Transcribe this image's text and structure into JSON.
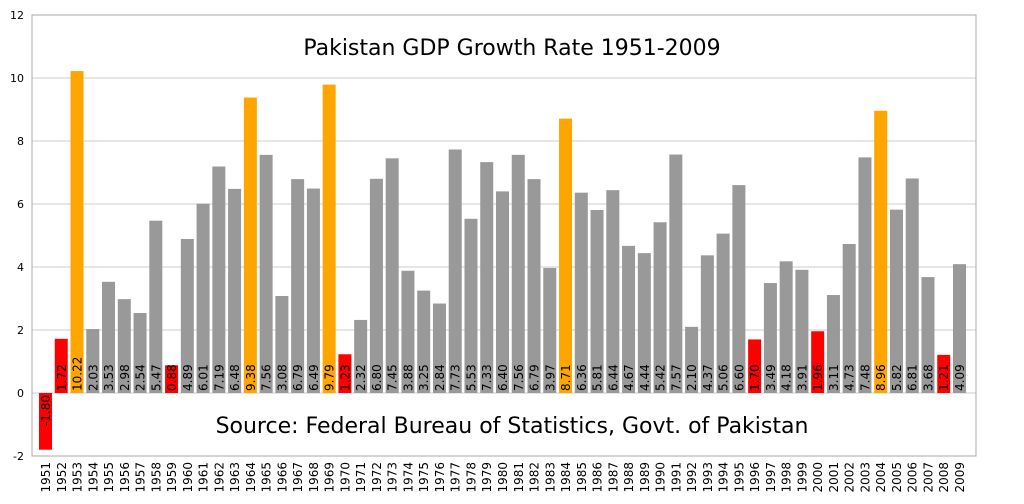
{
  "chart_data": {
    "type": "bar",
    "title": "Pakistan GDP Growth Rate 1951-2009",
    "annotation": "Source: Federal Bureau of Statistics, Govt. of Pakistan",
    "xlabel": "",
    "ylabel": "",
    "ylim": [
      -2,
      12
    ],
    "yticks": [
      -2,
      0,
      2,
      4,
      6,
      8,
      10,
      12
    ],
    "grid": true,
    "categories": [
      "1951",
      "1952",
      "1953",
      "1954",
      "1955",
      "1956",
      "1957",
      "1958",
      "1959",
      "1960",
      "1961",
      "1962",
      "1963",
      "1964",
      "1965",
      "1966",
      "1967",
      "1968",
      "1969",
      "1970",
      "1971",
      "1972",
      "1973",
      "1974",
      "1975",
      "1976",
      "1977",
      "1978",
      "1979",
      "1980",
      "1981",
      "1982",
      "1983",
      "1984",
      "1985",
      "1986",
      "1987",
      "1988",
      "1989",
      "1990",
      "1991",
      "1992",
      "1993",
      "1994",
      "1995",
      "1996",
      "1997",
      "1998",
      "1999",
      "2000",
      "2001",
      "2002",
      "2003",
      "2004",
      "2005",
      "2006",
      "2007",
      "2008",
      "2009"
    ],
    "values": [
      -1.8,
      1.72,
      10.22,
      2.03,
      3.53,
      2.98,
      2.54,
      5.47,
      0.88,
      4.89,
      6.01,
      7.19,
      6.48,
      9.38,
      7.56,
      3.08,
      6.79,
      6.49,
      9.79,
      1.23,
      2.32,
      6.8,
      7.45,
      3.88,
      3.25,
      2.84,
      7.73,
      5.53,
      7.33,
      6.4,
      7.56,
      6.79,
      3.97,
      8.71,
      6.36,
      5.81,
      6.44,
      4.67,
      4.44,
      5.42,
      7.57,
      2.1,
      4.37,
      5.06,
      6.6,
      1.7,
      3.49,
      4.18,
      3.91,
      1.96,
      3.11,
      4.73,
      7.48,
      8.96,
      5.82,
      6.81,
      3.68,
      1.21,
      4.09
    ],
    "labels": [
      "-1.80",
      "1.72",
      "10.22",
      "2.03",
      "3.53",
      "2.98",
      "2.54",
      "5.47",
      "0.88",
      "4.89",
      "6.01",
      "7.19",
      "6.48",
      "9.38",
      "7.56",
      "3.08",
      "6.79",
      "6.49",
      "9.79",
      "1.23",
      "2.32",
      "6.80",
      "7.45",
      "3.88",
      "3.25",
      "2.84",
      "7.73",
      "5.53",
      "7.33",
      "6.40",
      "7.56",
      "6.79",
      "3.97",
      "8.71",
      "6.36",
      "5.81",
      "6.44",
      "4.67",
      "4.44",
      "5.42",
      "7.57",
      "2.10",
      "4.37",
      "5.06",
      "6.60",
      "1.70",
      "3.49",
      "4.18",
      "3.91",
      "1.96",
      "3.11",
      "4.73",
      "7.48",
      "8.96",
      "5.82",
      "6.81",
      "3.68",
      "1.21",
      "4.09"
    ],
    "colors": {
      "low": "#ff0000",
      "normal": "#999999",
      "high": "#ffa500",
      "grid": "#cccccc",
      "axis": "#aaaaaa"
    },
    "color_rule": {
      "low_below": 2,
      "high_above": 8
    }
  }
}
